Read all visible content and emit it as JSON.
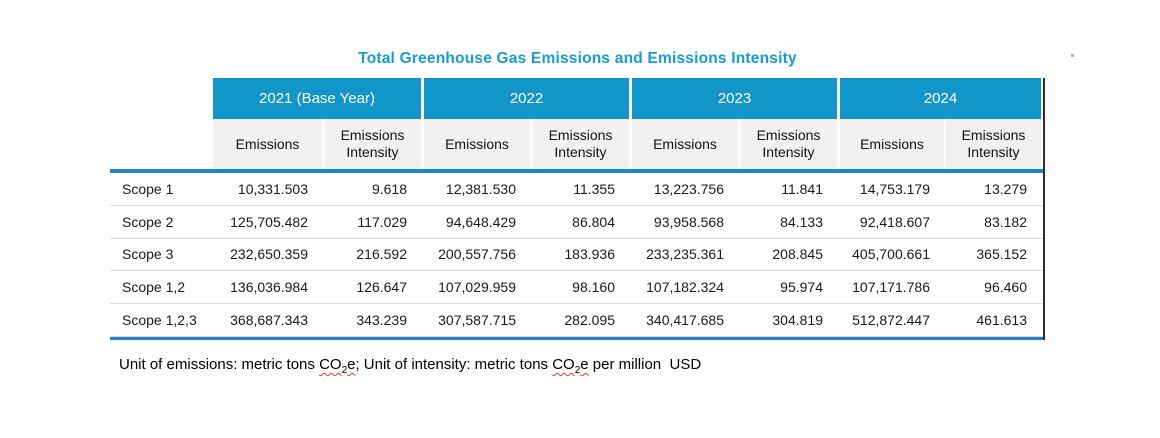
{
  "title": "Total Greenhouse Gas Emissions and Emissions Intensity",
  "colors": {
    "header_blue": "#1295c9",
    "rule_blue": "#1e86c6",
    "title_blue": "#189ad5",
    "subheader_bg": "#f1f1f2",
    "row_separator": "#d9d9d9",
    "right_border": "#2f2f2f",
    "squiggle_red": "#e03c31"
  },
  "chart_data": {
    "type": "table",
    "title": "Total Greenhouse Gas Emissions and Emissions Intensity",
    "year_columns": [
      "2021 (Base Year)",
      "2022",
      "2023",
      "2024"
    ],
    "sub_columns": {
      "emissions": "Emissions",
      "intensity": "Emissions Intensity"
    },
    "rows": [
      {
        "label": "Scope 1",
        "cells": [
          "10,331.503",
          "9.618",
          "12,381.530",
          "11.355",
          "13,223.756",
          "11.841",
          "14,753.179",
          "13.279"
        ]
      },
      {
        "label": "Scope 2",
        "cells": [
          "125,705.482",
          "117.029",
          "94,648.429",
          "86.804",
          "93,958.568",
          "84.133",
          "92,418.607",
          "83.182"
        ]
      },
      {
        "label": "Scope 3",
        "cells": [
          "232,650.359",
          "216.592",
          "200,557.756",
          "183.936",
          "233,235.361",
          "208.845",
          "405,700.661",
          "365.152"
        ]
      },
      {
        "label": "Scope 1,2",
        "cells": [
          "136,036.984",
          "126.647",
          "107,029.959",
          "98.160",
          "107,182.324",
          "95.974",
          "107,171.786",
          "96.460"
        ]
      },
      {
        "label": "Scope 1,2,3",
        "cells": [
          "368,687.343",
          "343.239",
          "307,587.715",
          "282.095",
          "340,417.685",
          "304.819",
          "512,872.447",
          "461.613"
        ]
      }
    ],
    "footnote_plain": "Unit of emissions: metric tons CO2e; Unit of intensity: metric tons CO2e per million USD"
  },
  "footer": {
    "seg1": "Unit of emissions: metric tons ",
    "co1": "CO",
    "sub1": "2",
    "e1": "e",
    "seg2": "; Unit of intensity: metric tons ",
    "co2": "CO",
    "sub2": "2",
    "e2": "e",
    "seg3": " per million  USD"
  }
}
